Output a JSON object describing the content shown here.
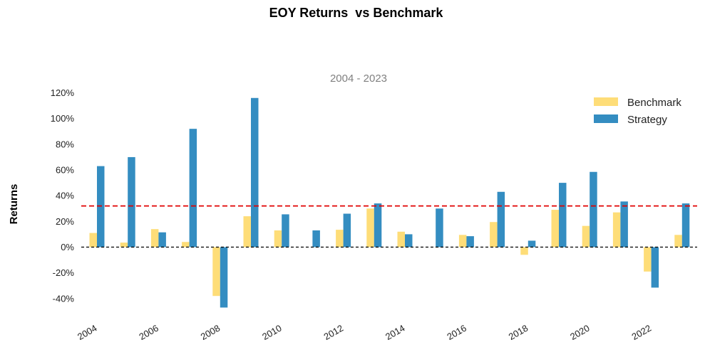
{
  "chart_data": {
    "type": "bar",
    "title": "EOY Returns  vs Benchmark",
    "subtitle": "2004 - 2023",
    "ylabel": "Returns",
    "xlabel": "",
    "categories": [
      "2004",
      "2005",
      "2006",
      "2007",
      "2008",
      "2009",
      "2010",
      "2011",
      "2012",
      "2013",
      "2014",
      "2015",
      "2016",
      "2017",
      "2018",
      "2019",
      "2020",
      "2021",
      "2022",
      "2023"
    ],
    "x_tick_labels": [
      "2004",
      "2006",
      "2008",
      "2010",
      "2012",
      "2014",
      "2016",
      "2018",
      "2020",
      "2022"
    ],
    "y_ticks": [
      -40,
      -20,
      0,
      20,
      40,
      60,
      80,
      100,
      120
    ],
    "y_tick_labels": [
      "-40%",
      "-20%",
      "0%",
      "20%",
      "40%",
      "60%",
      "80%",
      "100%",
      "120%"
    ],
    "ylim": [
      -47,
      120
    ],
    "series": [
      {
        "name": "Benchmark",
        "color": "#fedd78",
        "values": [
          11,
          3.5,
          14,
          4,
          -38,
          24,
          13,
          0,
          13.5,
          30,
          12,
          0,
          9.5,
          19.5,
          -6,
          29,
          16.5,
          27,
          -19,
          9.5
        ]
      },
      {
        "name": "Strategy",
        "color": "#348dc1",
        "values": [
          63,
          70,
          11.5,
          92,
          -47,
          116,
          25.5,
          13,
          26,
          34,
          10,
          30,
          8.5,
          43,
          5,
          50,
          58.5,
          35.5,
          -31.5,
          34
        ]
      }
    ],
    "mean_line": {
      "value": 32,
      "color": "#e00000",
      "style": "dashed"
    },
    "zero_line": {
      "value": 0,
      "color": "#000000",
      "style": "dashed"
    },
    "legend_position": "top-right",
    "grid": false
  }
}
